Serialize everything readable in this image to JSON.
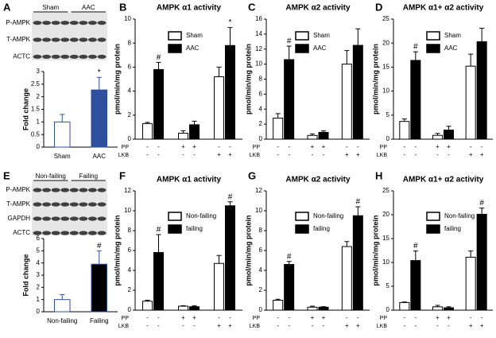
{
  "chart_data": [
    {
      "type": "bar",
      "panel": "A",
      "ylabel": "Fold change",
      "categories": [
        "Sham",
        "AAC"
      ],
      "values": [
        1.0,
        2.27
      ],
      "errors": [
        0.3,
        0.5
      ],
      "markers": [
        null,
        "*"
      ],
      "colors": [
        "#ffffff",
        "#2f4f9f"
      ],
      "edgecolor": "#2f4f9f",
      "ylim": [
        0,
        3
      ],
      "yticks": [
        0,
        0.5,
        1,
        1.5,
        2,
        2.5,
        3
      ],
      "blot": {
        "rows": [
          "P-AMPK",
          "T-AMPK",
          "ACTC"
        ],
        "groups": [
          "Sham",
          "AAC"
        ]
      }
    },
    {
      "type": "grouped_bar",
      "panel": "B",
      "title": "AMPK α1 activity",
      "ylabel": "pmol/min/mg protein",
      "ylim": [
        0,
        10
      ],
      "yticks": [
        0,
        2,
        4,
        6,
        8,
        10
      ],
      "series": [
        {
          "name": "Sham",
          "color": "#ffffff",
          "values": [
            1.3,
            0.5,
            5.2
          ],
          "errors": [
            0.1,
            0.2,
            0.8
          ],
          "markers": [
            null,
            null,
            null
          ]
        },
        {
          "name": "AAC",
          "color": "#000000",
          "values": [
            5.8,
            1.2,
            7.8
          ],
          "errors": [
            0.6,
            0.3,
            1.5
          ],
          "markers": [
            "#",
            null,
            "*"
          ]
        }
      ],
      "treatments": [
        {
          "name": "PP",
          "signs": [
            "-",
            "-",
            "+",
            "+",
            "-",
            "-"
          ]
        },
        {
          "name": "LKB",
          "signs": [
            "-",
            "-",
            "-",
            "-",
            "+",
            "+"
          ]
        }
      ]
    },
    {
      "type": "grouped_bar",
      "panel": "C",
      "title": "AMPK α2 activity",
      "ylabel": "pmol/min/mg protein",
      "ylim": [
        0,
        16
      ],
      "yticks": [
        0,
        2,
        4,
        6,
        8,
        10,
        12,
        14,
        16
      ],
      "series": [
        {
          "name": "Sham",
          "color": "#ffffff",
          "values": [
            2.8,
            0.5,
            10.0
          ],
          "errors": [
            0.6,
            0.2,
            1.8
          ],
          "markers": [
            null,
            null,
            null
          ]
        },
        {
          "name": "AAC",
          "color": "#000000",
          "values": [
            10.6,
            0.9,
            12.5
          ],
          "errors": [
            1.8,
            0.2,
            2.2
          ],
          "markers": [
            "#",
            null,
            null
          ]
        }
      ],
      "treatments": [
        {
          "name": "PP",
          "signs": [
            "-",
            "-",
            "+",
            "+",
            "-",
            "-"
          ]
        },
        {
          "name": "LKB",
          "signs": [
            "-",
            "-",
            "-",
            "-",
            "+",
            "+"
          ]
        }
      ]
    },
    {
      "type": "grouped_bar",
      "panel": "D",
      "title": "AMPK α1+ α2  activity",
      "ylabel": "pmol/min/mg protein",
      "ylim": [
        0,
        25
      ],
      "yticks": [
        0,
        5,
        10,
        15,
        20,
        25
      ],
      "series": [
        {
          "name": "Sham",
          "color": "#ffffff",
          "values": [
            3.7,
            0.8,
            15.2
          ],
          "errors": [
            0.5,
            0.4,
            2.5
          ],
          "markers": [
            null,
            null,
            null
          ]
        },
        {
          "name": "AAC",
          "color": "#000000",
          "values": [
            16.4,
            1.9,
            20.3
          ],
          "errors": [
            1.8,
            0.8,
            2.8
          ],
          "markers": [
            "#",
            null,
            null
          ]
        }
      ],
      "treatments": [
        {
          "name": "PP",
          "signs": [
            "-",
            "-",
            "+",
            "+",
            "-",
            "-"
          ]
        },
        {
          "name": "LKB",
          "signs": [
            "-",
            "-",
            "-",
            "-",
            "+",
            "+"
          ]
        }
      ]
    },
    {
      "type": "bar",
      "panel": "E",
      "ylabel": "Fold change",
      "categories": [
        "Non-failing",
        "Failing"
      ],
      "values": [
        1.0,
        3.9
      ],
      "errors": [
        0.4,
        1.1
      ],
      "markers": [
        null,
        "#"
      ],
      "colors": [
        "#ffffff",
        "#000000"
      ],
      "edgecolor": "#2f4f9f",
      "ylim": [
        0,
        6
      ],
      "yticks": [
        0,
        1,
        2,
        3,
        4,
        5,
        6
      ],
      "blot": {
        "rows": [
          "P-AMPK",
          "T-AMPK",
          "GAPDH",
          "ACTC"
        ],
        "groups": [
          "Non-failing",
          "Failing"
        ]
      }
    },
    {
      "type": "grouped_bar",
      "panel": "F",
      "title": "AMPK α1 activity",
      "ylabel": "pmol/min/mg protein",
      "ylim": [
        0,
        12
      ],
      "yticks": [
        0,
        2,
        4,
        6,
        8,
        10,
        12
      ],
      "series": [
        {
          "name": "Non-failing",
          "color": "#ffffff",
          "values": [
            0.9,
            0.4,
            4.7
          ],
          "errors": [
            0.1,
            0.05,
            0.8
          ],
          "markers": [
            null,
            null,
            null
          ]
        },
        {
          "name": "failing",
          "color": "#000000",
          "values": [
            5.8,
            0.35,
            10.5
          ],
          "errors": [
            1.8,
            0.1,
            0.4
          ],
          "markers": [
            "#",
            null,
            "#"
          ]
        }
      ],
      "treatments": [
        {
          "name": "PP",
          "signs": [
            "-",
            "-",
            "+",
            "+",
            "-",
            "-"
          ]
        },
        {
          "name": "LKB",
          "signs": [
            "-",
            "-",
            "-",
            "-",
            "+",
            "+"
          ]
        }
      ]
    },
    {
      "type": "grouped_bar",
      "panel": "G",
      "title": "AMPK α2 activity",
      "ylabel": "pmol/min/mg protein",
      "ylim": [
        0,
        12
      ],
      "yticks": [
        0,
        2,
        4,
        6,
        8,
        10,
        12
      ],
      "series": [
        {
          "name": "Non-failing",
          "color": "#ffffff",
          "values": [
            1.0,
            0.3,
            6.4
          ],
          "errors": [
            0.1,
            0.1,
            0.5
          ],
          "markers": [
            null,
            null,
            null
          ]
        },
        {
          "name": "failing",
          "color": "#000000",
          "values": [
            4.6,
            0.3,
            9.5
          ],
          "errors": [
            0.3,
            0.05,
            0.9
          ],
          "markers": [
            "#",
            null,
            "#"
          ]
        }
      ],
      "treatments": [
        {
          "name": "PP",
          "signs": [
            "-",
            "-",
            "+",
            "+",
            "-",
            "-"
          ]
        },
        {
          "name": "LKB",
          "signs": [
            "-",
            "-",
            "-",
            "-",
            "+",
            "+"
          ]
        }
      ]
    },
    {
      "type": "grouped_bar",
      "panel": "H",
      "title": "AMPK α1+ α2  activity",
      "ylabel": "pmol/min/mg protein",
      "ylim": [
        0,
        25
      ],
      "yticks": [
        0,
        5,
        10,
        15,
        20,
        25
      ],
      "series": [
        {
          "name": "Non-failing",
          "color": "#ffffff",
          "values": [
            1.6,
            0.7,
            11.1
          ],
          "errors": [
            0.1,
            0.3,
            1.3
          ],
          "markers": [
            null,
            null,
            null
          ]
        },
        {
          "name": "failing",
          "color": "#000000",
          "values": [
            10.4,
            0.5,
            20.1
          ],
          "errors": [
            2.0,
            0.2,
            1.3
          ],
          "markers": [
            "#",
            null,
            "#"
          ]
        }
      ],
      "treatments": [
        {
          "name": "PP",
          "signs": [
            "-",
            "-",
            "+",
            "+",
            "-",
            "-"
          ]
        },
        {
          "name": "LKB",
          "signs": [
            "-",
            "-",
            "-",
            "-",
            "+",
            "+"
          ]
        }
      ]
    }
  ]
}
